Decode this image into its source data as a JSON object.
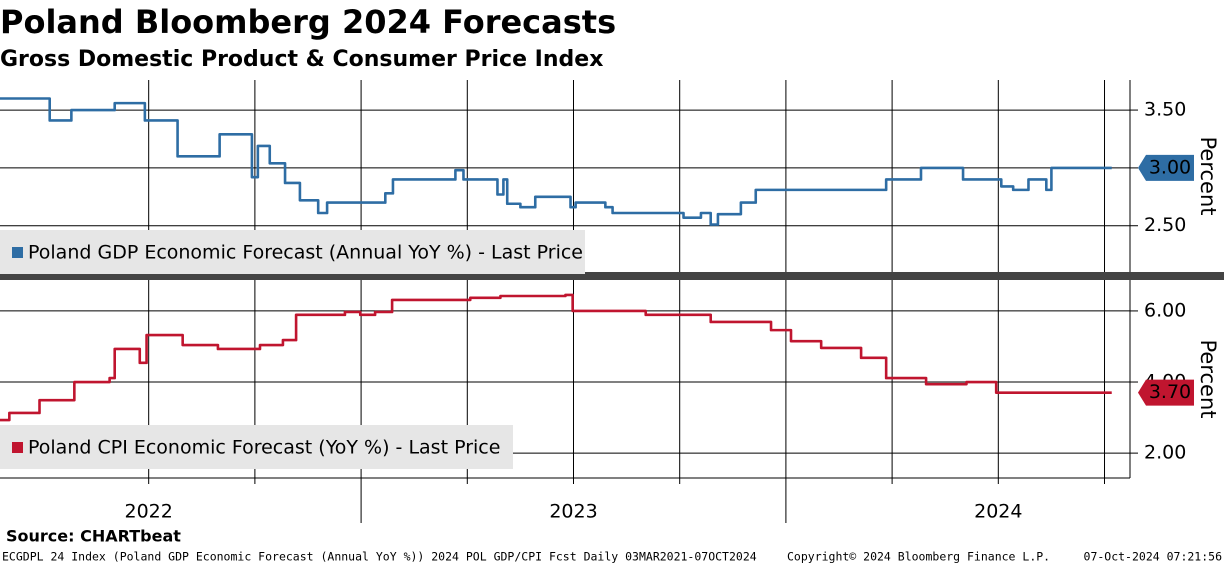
{
  "chart_data": [
    {
      "type": "line",
      "step": true,
      "title": "Poland Bloomberg 2024 Forecasts",
      "subtitle": "Gross Domestic Product & Consumer Price Index",
      "y_axis_label": "Percent",
      "xlim": [
        2022.15,
        2024.81
      ],
      "xgrid": [
        2022.5,
        2022.75,
        2023,
        2023.25,
        2023.5,
        2023.75,
        2024,
        2024.25,
        2024.5,
        2024.75
      ],
      "ylim": [
        2.1,
        3.76
      ],
      "yticks": [
        {
          "value": 2.5,
          "label": "2.50"
        },
        {
          "value": 3,
          "label": "3.00"
        },
        {
          "value": 3.5,
          "label": "3.50"
        }
      ],
      "grid": true,
      "series": [
        {
          "name": "Poland GDP Economic Forecast (Annual YoY %) - Last Price",
          "color": "#2e6da4",
          "last_value_label": "3.00",
          "x": [
            2022.15,
            2022.267,
            2022.318,
            2022.42,
            2022.491,
            2022.568,
            2022.667,
            2022.743,
            2022.757,
            2022.785,
            2022.821,
            2022.856,
            2022.899,
            2022.92,
            2023.057,
            2023.075,
            2023.222,
            2023.241,
            2023.321,
            2023.335,
            2023.344,
            2023.375,
            2023.41,
            2023.493,
            2023.505,
            2023.575,
            2023.592,
            2023.759,
            2023.8,
            2023.823,
            2023.84,
            2023.894,
            2023.929,
            2024.236,
            2024.318,
            2024.417,
            2024.507,
            2024.535,
            2024.571,
            2024.613,
            2024.625,
            2024.767
          ],
          "values": [
            3.6,
            3.41,
            3.5,
            3.56,
            3.41,
            3.1,
            3.29,
            2.92,
            3.19,
            3.04,
            2.87,
            2.72,
            2.61,
            2.7,
            2.78,
            2.9,
            2.98,
            2.9,
            2.77,
            2.9,
            2.69,
            2.66,
            2.75,
            2.66,
            2.7,
            2.66,
            2.61,
            2.57,
            2.61,
            2.51,
            2.6,
            2.7,
            2.81,
            2.9,
            3.0,
            2.9,
            2.84,
            2.81,
            2.9,
            2.81,
            3.0,
            3.0
          ]
        }
      ]
    },
    {
      "type": "line",
      "step": true,
      "y_axis_label": "Percent",
      "xlim": [
        2022.15,
        2024.81
      ],
      "xgrid": [
        2022.5,
        2022.75,
        2023,
        2023.25,
        2023.5,
        2023.75,
        2024,
        2024.25,
        2024.5,
        2024.75
      ],
      "xticks": [
        {
          "value": 2022.5,
          "label": "2022"
        },
        {
          "value": 2023.5,
          "label": "2023"
        },
        {
          "value": 2024.5,
          "label": "2024"
        }
      ],
      "ylim": [
        1.3,
        6.87
      ],
      "yticks": [
        {
          "value": 2,
          "label": "2.00"
        },
        {
          "value": 4,
          "label": "4.00"
        },
        {
          "value": 6,
          "label": "6.00"
        }
      ],
      "grid": true,
      "series": [
        {
          "name": "Poland CPI Economic Forecast (YoY %) - Last Price",
          "color": "#c0152f",
          "last_value_label": "3.70",
          "x": [
            2022.15,
            2022.172,
            2022.243,
            2022.325,
            2022.408,
            2022.42,
            2022.479,
            2022.495,
            2022.58,
            2022.663,
            2022.762,
            2022.816,
            2022.847,
            2022.962,
            2022.998,
            2023.033,
            2023.073,
            2023.257,
            2023.328,
            2023.481,
            2023.498,
            2023.67,
            2023.823,
            2023.965,
            2024.012,
            2024.083,
            2024.177,
            2024.236,
            2024.33,
            2024.425,
            2024.495,
            2024.767
          ],
          "values": [
            2.93,
            3.13,
            3.49,
            4.0,
            4.11,
            4.93,
            4.54,
            5.32,
            5.04,
            4.93,
            5.04,
            5.18,
            5.89,
            5.97,
            5.89,
            5.97,
            6.31,
            6.37,
            6.42,
            6.45,
            6.0,
            5.89,
            5.69,
            5.46,
            5.15,
            4.96,
            4.68,
            4.11,
            3.94,
            4.0,
            3.7,
            3.7
          ]
        }
      ]
    }
  ],
  "source": "Source: CHARTbeat",
  "footer": {
    "left": "ECGDPL 24 Index (Poland GDP Economic Forecast (Annual YoY %)) 2024 POL GDP/CPI Fcst  Daily 03MAR2021-07OCT2024",
    "copyright": "Copyright© 2024 Bloomberg Finance L.P.",
    "timestamp": "07-Oct-2024 07:21:56"
  }
}
